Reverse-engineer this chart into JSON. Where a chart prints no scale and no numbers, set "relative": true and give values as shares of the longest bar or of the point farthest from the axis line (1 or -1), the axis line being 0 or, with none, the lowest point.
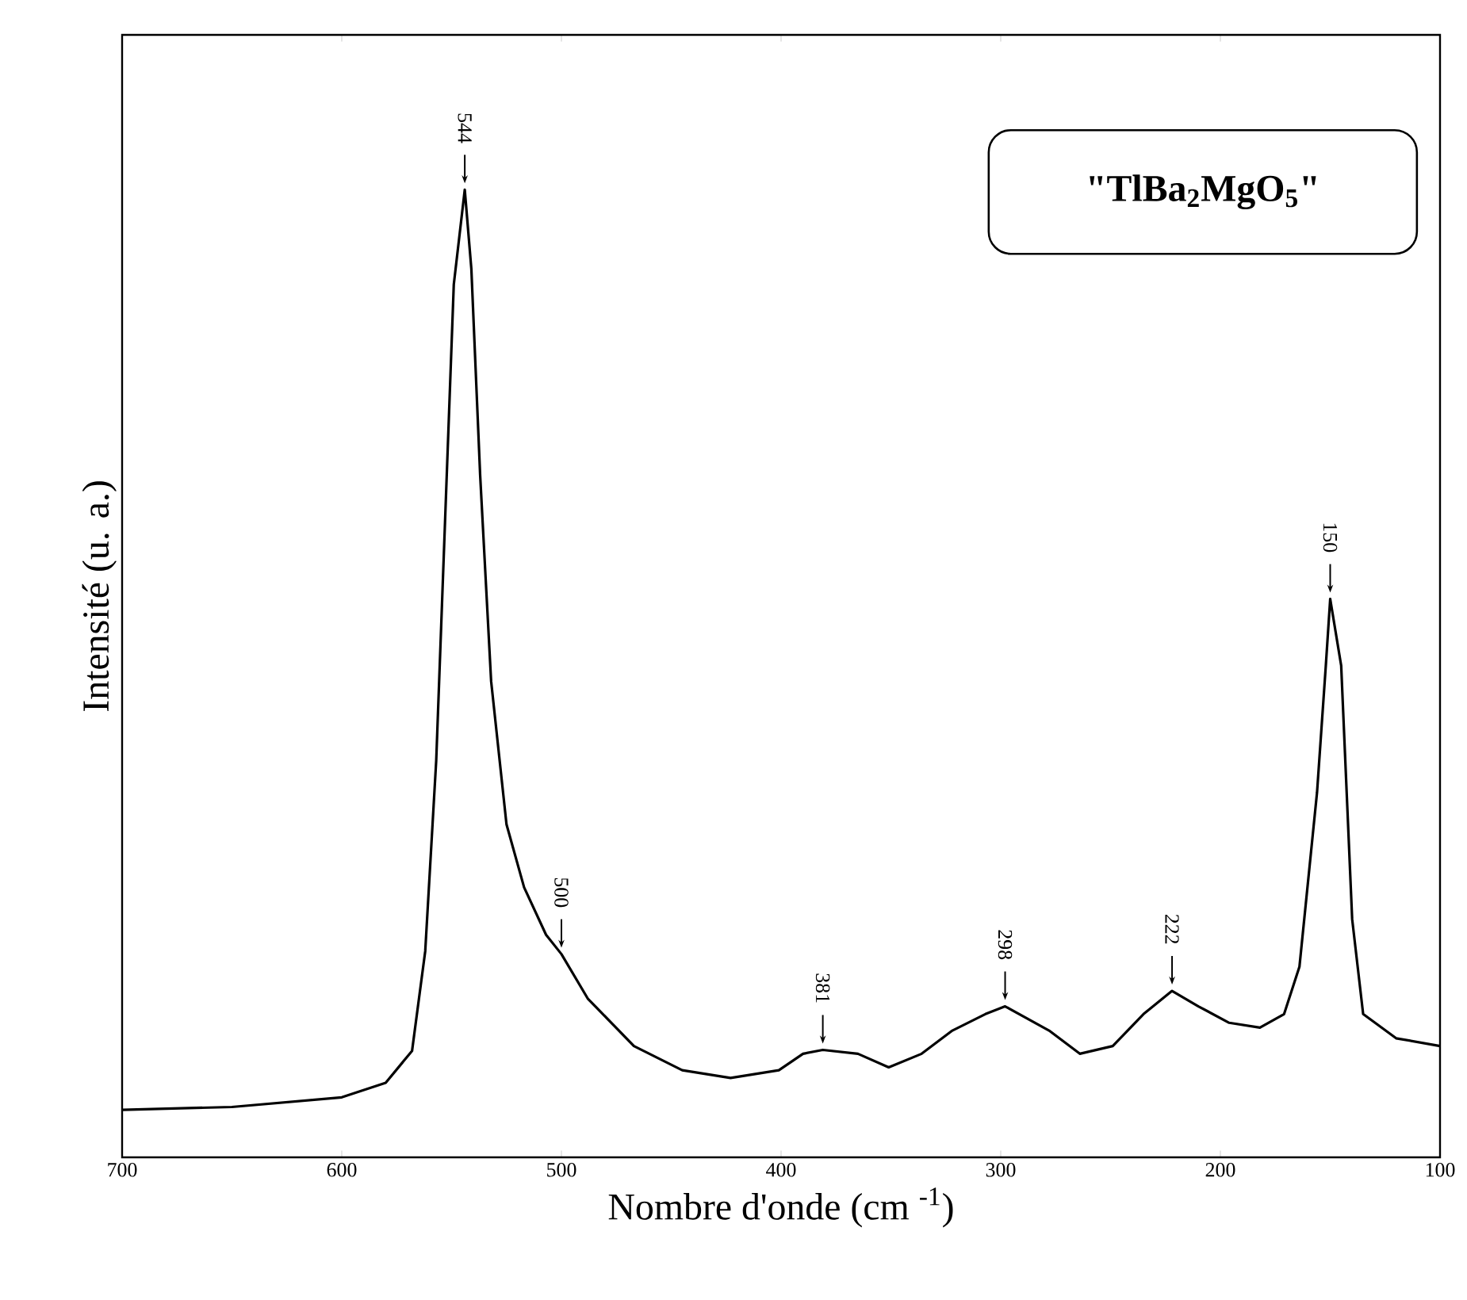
{
  "chart_data": {
    "type": "line",
    "title": "\"TlBa$_{2}$MgO$_{5}$\"",
    "xlabel": "Nombre d'onde (cm $^{-1}$)",
    "ylabel": "Intensité (u. a.)",
    "relative": true,
    "xlim": [
      700,
      100
    ],
    "xticks": [
      700,
      600,
      500,
      400,
      300,
      200,
      100
    ],
    "grid": false,
    "marker": "none",
    "line_style": "solid",
    "series": [
      {
        "color": "#000000",
        "x": [
          700,
          650,
          600,
          580,
          568,
          562,
          557,
          553,
          549,
          544,
          541,
          537,
          532,
          525,
          517,
          507,
          500,
          488,
          467,
          445,
          423,
          401,
          390,
          381,
          365,
          351,
          336,
          322,
          307,
          298,
          278,
          264,
          249,
          235,
          222,
          210,
          196,
          182,
          171,
          164,
          156,
          152,
          150,
          145,
          140,
          135,
          120,
          100
        ],
        "values": [
          0.049,
          0.052,
          0.062,
          0.077,
          0.11,
          0.213,
          0.41,
          0.656,
          0.902,
          1,
          0.918,
          0.705,
          0.492,
          0.344,
          0.279,
          0.23,
          0.21,
          0.164,
          0.115,
          0.09,
          0.082,
          0.09,
          0.107,
          0.111,
          0.107,
          0.093,
          0.107,
          0.131,
          0.148,
          0.156,
          0.131,
          0.107,
          0.115,
          0.148,
          0.172,
          0.156,
          0.139,
          0.134,
          0.148,
          0.197,
          0.377,
          0.508,
          0.577,
          0.508,
          0.246,
          0.148,
          0.123,
          0.115
        ]
      }
    ],
    "annotations": [
      {
        "text": "544",
        "x": 544,
        "y": 1
      },
      {
        "text": "500",
        "x": 500,
        "y": 0.21
      },
      {
        "text": "381",
        "x": 381,
        "y": 0.111
      },
      {
        "text": "298",
        "x": 298,
        "y": 0.156
      },
      {
        "text": "222",
        "x": 222,
        "y": 0.172
      },
      {
        "text": "150",
        "x": 150,
        "y": 0.577
      }
    ]
  }
}
